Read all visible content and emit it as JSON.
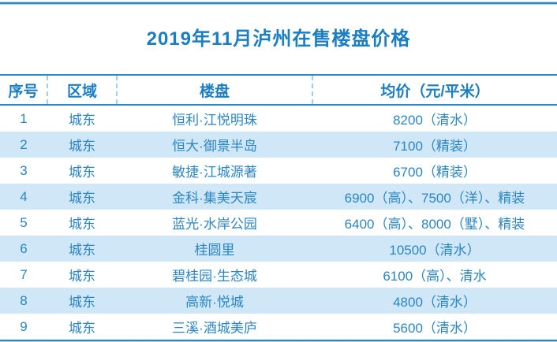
{
  "title": "2019年11月泸州在售楼盘价格",
  "colors": {
    "accent_blue": "#1b7ec3",
    "text_blue": "#2c85c4",
    "line_blue": "#2b87c6",
    "line_halo": "#a9d6ef",
    "dashed_separator": "#9fd0ec",
    "zebra_row": "#cfe7f6",
    "background": "#ffffff"
  },
  "chart_data": {
    "type": "table",
    "title": "2019年11月泸州在售楼盘价格",
    "columns": [
      "序号",
      "区域",
      "楼盘",
      "均价（元/平米）"
    ],
    "rows": [
      [
        "1",
        "城东",
        "恒利·江悦明珠",
        "8200（清水）"
      ],
      [
        "2",
        "城东",
        "恒大·御景半岛",
        "7100（精装）"
      ],
      [
        "3",
        "城东",
        "敏捷·江城源著",
        "6700（精装）"
      ],
      [
        "4",
        "城东",
        "金科·集美天宸",
        "6900（高）、7500（洋）、精装"
      ],
      [
        "5",
        "城东",
        "蓝光·水岸公园",
        "6400（高）、8000（墅）、精装"
      ],
      [
        "6",
        "城东",
        "桂圆里",
        "10500（清水）"
      ],
      [
        "7",
        "城东",
        "碧桂园·生态城",
        "6100（高）、清水"
      ],
      [
        "8",
        "城东",
        "高新·悦城",
        "4800（清水）"
      ],
      [
        "9",
        "城东",
        "三溪·酒城美庐",
        "5600（清水）"
      ]
    ],
    "layout_hints": {
      "zebra_striping": "even rows light blue",
      "header_separators": "dashed vertical, header row only",
      "rules": "solid blue horizontal rules above title, around header, below last row"
    }
  }
}
